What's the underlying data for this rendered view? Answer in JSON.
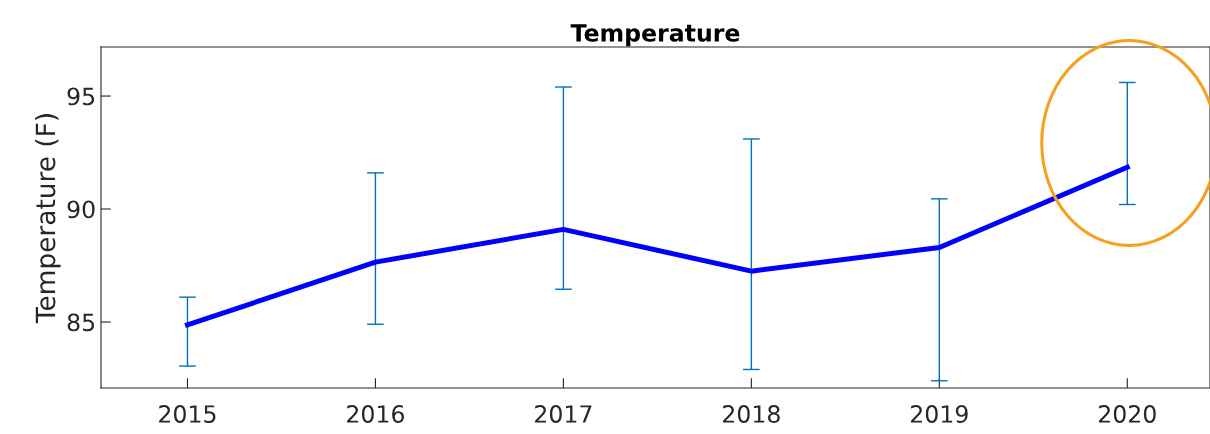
{
  "chart_data": {
    "type": "line",
    "title": "Temperature",
    "ylabel": "Temperature (F)",
    "x": [
      2015,
      2016,
      2017,
      2018,
      2019,
      2020
    ],
    "series": [
      {
        "color": "#0000ff",
        "values": [
          84.87,
          87.65,
          89.1,
          87.25,
          88.3,
          91.85
        ],
        "errors": [
          [
            83.05,
            86.1
          ],
          [
            84.9,
            91.6
          ],
          [
            86.45,
            95.4
          ],
          [
            82.9,
            93.1
          ],
          [
            82.4,
            90.45
          ],
          [
            90.2,
            95.6
          ]
        ]
      }
    ],
    "xlim": [
      2014.54,
      2020.44
    ],
    "ylim": [
      82.08,
      97.17
    ],
    "xticks": [
      2015,
      2016,
      2017,
      2018,
      2019,
      2020
    ],
    "yticks": [
      85,
      90,
      95
    ],
    "grid": false,
    "legend": false,
    "marker": "none",
    "line_style": "solid"
  }
}
